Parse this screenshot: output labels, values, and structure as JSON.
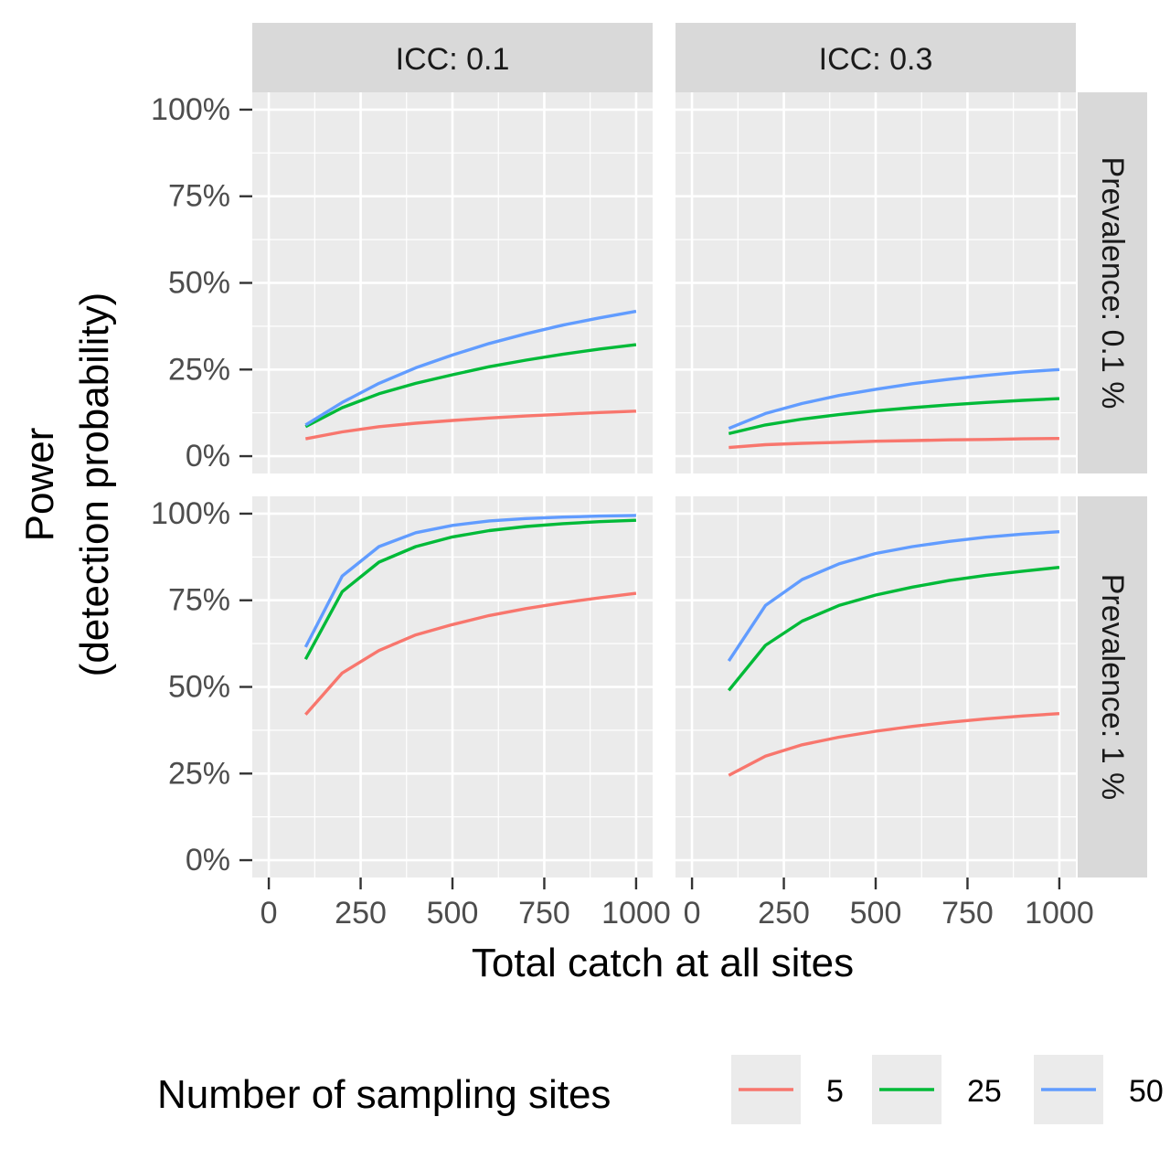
{
  "chart_data": {
    "type": "line",
    "xlabel": "Total catch at all sites",
    "ylabel_lines": [
      "Power",
      "(detection probability)"
    ],
    "x_ticks": [
      0,
      250,
      500,
      750,
      1000
    ],
    "y_ticks": [
      0,
      0.25,
      0.5,
      0.75,
      1.0
    ],
    "y_tick_labels": [
      "0%",
      "25%",
      "50%",
      "75%",
      "100%"
    ],
    "xlim": [
      -45,
      1045
    ],
    "ylim": [
      -0.05,
      1.05
    ],
    "grid": true,
    "legend": {
      "title": "Number of sampling sites",
      "position": "bottom",
      "entries": [
        {
          "label": "5",
          "color": "#F8766D"
        },
        {
          "label": "25",
          "color": "#00BA38"
        },
        {
          "label": "50",
          "color": "#619CFF"
        }
      ]
    },
    "col_strips": [
      "ICC: 0.1",
      "ICC: 0.3"
    ],
    "row_strips": [
      "Prevalence: 0.1 %",
      "Prevalence: 1 %"
    ],
    "x": [
      100,
      200,
      300,
      400,
      500,
      600,
      700,
      800,
      900,
      1000
    ],
    "panels": [
      {
        "icc": "ICC: 0.1",
        "prevalence": "Prevalence: 0.1 %",
        "series": [
          {
            "label": "5",
            "values": [
              0.05,
              0.07,
              0.085,
              0.095,
              0.103,
              0.11,
              0.116,
              0.121,
              0.126,
              0.13
            ]
          },
          {
            "label": "25",
            "values": [
              0.085,
              0.14,
              0.18,
              0.21,
              0.235,
              0.258,
              0.277,
              0.294,
              0.309,
              0.322
            ]
          },
          {
            "label": "50",
            "values": [
              0.09,
              0.155,
              0.21,
              0.255,
              0.292,
              0.325,
              0.353,
              0.378,
              0.399,
              0.418
            ]
          }
        ]
      },
      {
        "icc": "ICC: 0.3",
        "prevalence": "Prevalence: 0.1 %",
        "series": [
          {
            "label": "5",
            "values": [
              0.025,
              0.033,
              0.037,
              0.04,
              0.043,
              0.045,
              0.047,
              0.048,
              0.05,
              0.051
            ]
          },
          {
            "label": "25",
            "values": [
              0.065,
              0.09,
              0.107,
              0.12,
              0.131,
              0.14,
              0.148,
              0.155,
              0.161,
              0.166
            ]
          },
          {
            "label": "50",
            "values": [
              0.08,
              0.123,
              0.152,
              0.175,
              0.193,
              0.209,
              0.222,
              0.233,
              0.243,
              0.25
            ]
          }
        ]
      },
      {
        "icc": "ICC: 0.1",
        "prevalence": "Prevalence: 1 %",
        "series": [
          {
            "label": "5",
            "values": [
              0.42,
              0.54,
              0.605,
              0.65,
              0.68,
              0.706,
              0.726,
              0.743,
              0.757,
              0.77
            ]
          },
          {
            "label": "25",
            "values": [
              0.58,
              0.775,
              0.86,
              0.905,
              0.933,
              0.951,
              0.963,
              0.971,
              0.977,
              0.981
            ]
          },
          {
            "label": "50",
            "values": [
              0.615,
              0.82,
              0.905,
              0.945,
              0.966,
              0.979,
              0.986,
              0.99,
              0.993,
              0.995
            ]
          }
        ]
      },
      {
        "icc": "ICC: 0.3",
        "prevalence": "Prevalence: 1 %",
        "series": [
          {
            "label": "5",
            "values": [
              0.245,
              0.3,
              0.333,
              0.355,
              0.372,
              0.386,
              0.398,
              0.408,
              0.416,
              0.423
            ]
          },
          {
            "label": "25",
            "values": [
              0.49,
              0.62,
              0.69,
              0.735,
              0.765,
              0.788,
              0.807,
              0.822,
              0.834,
              0.845
            ]
          },
          {
            "label": "50",
            "values": [
              0.575,
              0.735,
              0.81,
              0.855,
              0.885,
              0.905,
              0.92,
              0.932,
              0.941,
              0.948
            ]
          }
        ]
      }
    ]
  }
}
